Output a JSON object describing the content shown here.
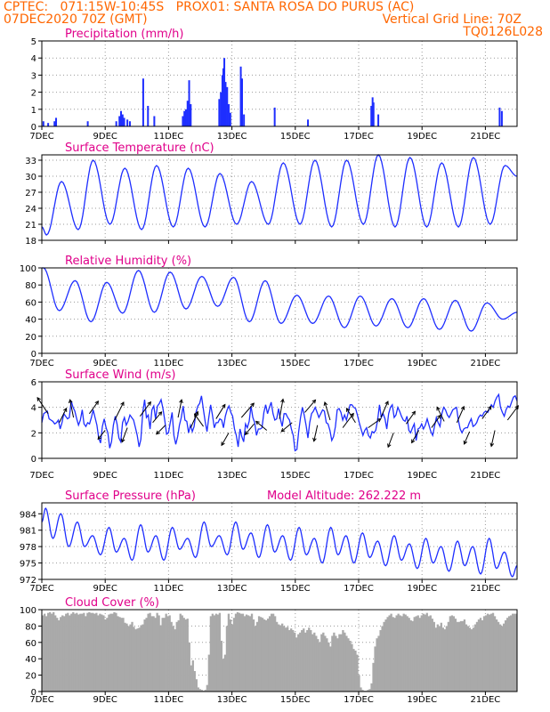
{
  "header": {
    "line1": "CPTEC:   071:15W-10:45S   PROX01: SANTA ROSA DO PURUS (AC)",
    "line2_left": "07DEC2020 70Z (GMT)",
    "line2_right": "Vertical Grid Line: 70Z",
    "line3_right": "TQ0126L028",
    "color": "#ff6600"
  },
  "x_axis": {
    "ticks": [
      "7DEC",
      "9DEC",
      "11DEC",
      "13DEC",
      "15DEC",
      "17DEC",
      "19DEC",
      "21DEC"
    ],
    "tick_days": [
      0,
      2,
      4,
      6,
      8,
      10,
      12,
      14
    ],
    "range_days": [
      0,
      15
    ]
  },
  "chart_data": [
    {
      "type": "bar",
      "title": "Precipitation (mm/h)",
      "ylim": [
        0,
        5
      ],
      "yticks": [
        "0",
        "1",
        "2",
        "3",
        "4",
        "5"
      ],
      "color": "#1e2eff",
      "points": [
        [
          0.05,
          0.3
        ],
        [
          0.2,
          0.2
        ],
        [
          0.4,
          0.3
        ],
        [
          0.45,
          0.5
        ],
        [
          1.45,
          0.3
        ],
        [
          2.35,
          0.3
        ],
        [
          2.45,
          0.6
        ],
        [
          2.5,
          0.9
        ],
        [
          2.55,
          0.7
        ],
        [
          2.6,
          0.5
        ],
        [
          2.7,
          0.4
        ],
        [
          2.78,
          0.3
        ],
        [
          3.2,
          2.8
        ],
        [
          3.35,
          1.2
        ],
        [
          3.55,
          0.6
        ],
        [
          4.45,
          0.6
        ],
        [
          4.5,
          0.9
        ],
        [
          4.55,
          1.0
        ],
        [
          4.6,
          1.5
        ],
        [
          4.65,
          2.7
        ],
        [
          4.7,
          1.3
        ],
        [
          5.6,
          1.6
        ],
        [
          5.65,
          2.0
        ],
        [
          5.7,
          3.0
        ],
        [
          5.73,
          3.4
        ],
        [
          5.76,
          4.0
        ],
        [
          5.8,
          2.6
        ],
        [
          5.85,
          2.3
        ],
        [
          5.9,
          1.3
        ],
        [
          5.95,
          0.8
        ],
        [
          6.28,
          3.5
        ],
        [
          6.32,
          2.8
        ],
        [
          6.38,
          0.7
        ],
        [
          7.35,
          1.1
        ],
        [
          8.4,
          0.4
        ],
        [
          10.4,
          1.2
        ],
        [
          10.44,
          1.7
        ],
        [
          10.47,
          1.4
        ],
        [
          10.62,
          0.7
        ],
        [
          14.45,
          1.1
        ],
        [
          14.52,
          0.9
        ]
      ]
    },
    {
      "type": "line",
      "title": "Surface Temperature (nC)",
      "ylim": [
        18,
        34
      ],
      "yticks": [
        "18",
        "21",
        "24",
        "27",
        "30",
        "33"
      ],
      "color": "#1e2eff",
      "max": [
        29,
        33,
        31.5,
        32,
        31.5,
        30.5,
        29,
        32.5,
        33,
        33,
        34,
        33.5,
        32.5,
        33.5,
        32
      ],
      "min": [
        19,
        20,
        21,
        20,
        20.5,
        20.5,
        21,
        21,
        21,
        20.5,
        21,
        20.5,
        20.5,
        20.5,
        21
      ]
    },
    {
      "type": "line",
      "title": "Relative Humidity (%)",
      "ylim": [
        0,
        100
      ],
      "yticks": [
        "0",
        "20",
        "40",
        "60",
        "80",
        "100"
      ],
      "color": "#1e2eff",
      "max": [
        100,
        85,
        83,
        97,
        95,
        90,
        89,
        85,
        68,
        67,
        67,
        64,
        64,
        62,
        59
      ],
      "min": [
        50,
        37,
        47,
        48,
        52,
        55,
        37,
        35,
        35,
        30,
        32,
        30,
        28,
        26,
        40
      ]
    },
    {
      "type": "line",
      "title": "Surface Wind (m/s)",
      "ylim": [
        0,
        6
      ],
      "yticks": [
        "0",
        "2",
        "4",
        "6"
      ],
      "color": "#1e2eff",
      "series_values": [
        2.8,
        3.5,
        3.6,
        3.7,
        3.1,
        3.0,
        2.9,
        2.7,
        2.8,
        3.0,
        2.3,
        2.8,
        3.5,
        3.3,
        3.1,
        3.2,
        4.5,
        4.0,
        3.7,
        3.1,
        2.6,
        3.0,
        3.8,
        2.7,
        2.5,
        2.8,
        2.7,
        3.2,
        3.8,
        3.2,
        2.6,
        1.6,
        1.2,
        2.5,
        3.1,
        2.4,
        2.0,
        0.8,
        1.3,
        2.6,
        3.3,
        2.7,
        1.6,
        1.3,
        2.8,
        3.2,
        2.6,
        2.9,
        3.4,
        3.2,
        3.0,
        2.4,
        1.8,
        0.9,
        1.5,
        3.6,
        4.6,
        3.2,
        3.4,
        2.3,
        3.8,
        4.1,
        3.1,
        4.1,
        4.3,
        4.6,
        3.9,
        3.0,
        1.9,
        2.0,
        2.8,
        3.6,
        1.8,
        1.1,
        1.7,
        2.6,
        3.2,
        4.1,
        3.0,
        2.9,
        2.0,
        2.6,
        2.1,
        2.5,
        3.6,
        4.1,
        4.3,
        4.9,
        3.9,
        2.9,
        2.1,
        3.2,
        4.2,
        3.4,
        2.4,
        2.8,
        2.8,
        3.1,
        3.0,
        2.4,
        3.3,
        3.8,
        4.1,
        3.6,
        3.3,
        2.3,
        1.8,
        0.9,
        2.3,
        1.7,
        1.3,
        2.7,
        2.4,
        2.9,
        4.1,
        3.2,
        2.8,
        1.8,
        2.3,
        2.3,
        2.4,
        3.6,
        4.2,
        3.5,
        4.0,
        4.4,
        3.5,
        3.0,
        3.1,
        3.9,
        3.1,
        2.5,
        3.5,
        3.5,
        3.2,
        3.0,
        2.3,
        1.8,
        0.6,
        0.7,
        2.1,
        3.2,
        4.0,
        3.4,
        2.6,
        1.6,
        2.8,
        3.5,
        3.7,
        4.0,
        3.6,
        3.2,
        3.5,
        3.8,
        3.7,
        2.8,
        2.7,
        2.2,
        1.4,
        1.7,
        2.5,
        3.8,
        3.9,
        3.6,
        3.0,
        3.4,
        3.0,
        3.6,
        4.2,
        4.2,
        4.0,
        3.9,
        3.4,
        2.8,
        2.3,
        1.8,
        2.2,
        2.4,
        1.8,
        1.6,
        2.1,
        2.0,
        2.2,
        3.0,
        4.2,
        3.2,
        3.5,
        3.1,
        2.3,
        3.5,
        4.0,
        4.2,
        3.2,
        3.4,
        4.0,
        3.7,
        3.3,
        3.0,
        2.9,
        3.3,
        2.2,
        2.0,
        2.4,
        2.7,
        1.4,
        2.3,
        2.4,
        2.7,
        2.3,
        2.6,
        3.1,
        2.6,
        2.1,
        1.8,
        2.5,
        3.2,
        2.8,
        2.5,
        3.5,
        4.0,
        3.8,
        3.4,
        3.2,
        3.5,
        3.8,
        3.9,
        4.0,
        3.0,
        2.3,
        2.0,
        2.3,
        2.4,
        2.4,
        2.8,
        3.1,
        2.5,
        2.6,
        2.8,
        3.2,
        3.4,
        3.3,
        3.6,
        3.7,
        3.6,
        3.9,
        4.2,
        4.0,
        4.5,
        4.8,
        5.0,
        4.0,
        3.6,
        3.3,
        3.8,
        4.1,
        4.0,
        4.4,
        4.8,
        4.9,
        4.5
      ],
      "arrows": [
        [
          0.2,
          3.5,
          -12,
          -18
        ],
        [
          0.55,
          2.8,
          8,
          -16
        ],
        [
          1.0,
          3.2,
          -4,
          -20
        ],
        [
          1.5,
          3.5,
          10,
          -14
        ],
        [
          2.0,
          2.2,
          -8,
          10
        ],
        [
          2.3,
          3.0,
          10,
          -20
        ],
        [
          2.7,
          2.4,
          -6,
          16
        ],
        [
          3.1,
          3.3,
          12,
          -16
        ],
        [
          3.5,
          2.8,
          10,
          -12
        ],
        [
          3.9,
          2.6,
          -10,
          10
        ],
        [
          4.3,
          3.2,
          4,
          -20
        ],
        [
          4.7,
          2.4,
          8,
          -18
        ],
        [
          5.1,
          2.5,
          -10,
          -14
        ],
        [
          5.5,
          3.1,
          10,
          -16
        ],
        [
          5.9,
          2.0,
          -8,
          14
        ],
        [
          6.3,
          3.2,
          14,
          -16
        ],
        [
          6.7,
          2.7,
          -10,
          12
        ],
        [
          7.1,
          2.2,
          -12,
          -10
        ],
        [
          7.5,
          3.1,
          4,
          -22
        ],
        [
          7.9,
          2.8,
          -12,
          10
        ],
        [
          8.3,
          3.6,
          12,
          -14
        ],
        [
          8.7,
          2.6,
          -4,
          18
        ],
        [
          9.1,
          3.0,
          -6,
          -20
        ],
        [
          9.5,
          2.4,
          12,
          -16
        ],
        [
          9.9,
          2.8,
          -10,
          -16
        ],
        [
          10.3,
          2.4,
          14,
          -10
        ],
        [
          10.7,
          3.2,
          8,
          -18
        ],
        [
          11.1,
          2.0,
          -6,
          16
        ],
        [
          11.5,
          2.7,
          10,
          -14
        ],
        [
          11.9,
          2.2,
          -8,
          14
        ],
        [
          12.3,
          2.4,
          10,
          -14
        ],
        [
          12.7,
          2.9,
          -8,
          -16
        ],
        [
          13.1,
          2.8,
          8,
          -18
        ],
        [
          13.5,
          2.1,
          -6,
          14
        ],
        [
          13.9,
          3.1,
          10,
          -14
        ],
        [
          14.3,
          2.2,
          -4,
          18
        ],
        [
          14.7,
          3.0,
          12,
          -16
        ]
      ]
    },
    {
      "type": "line",
      "title": "Surface Pressure (hPa)",
      "annotation": "Model Altitude: 262.222  m",
      "ylim": [
        972,
        986
      ],
      "yticks": [
        "972",
        "975",
        "978",
        "981",
        "984"
      ],
      "color": "#1e2eff",
      "start": 982.5,
      "am_peak": [
        985,
        982.5,
        981.5,
        982,
        981.5,
        982.5,
        982.5,
        982,
        981.5,
        981.5,
        980.5,
        980,
        979.5,
        979,
        979.5
      ],
      "pm_peak": [
        984,
        980,
        979.5,
        980,
        979.5,
        980,
        980.5,
        980,
        979.5,
        980,
        979,
        978.5,
        978,
        978,
        977
      ],
      "trough": [
        978,
        976.5,
        975.5,
        975.5,
        976,
        976.5,
        976,
        975.5,
        975,
        975,
        974.5,
        974,
        973.5,
        973,
        972.5
      ]
    },
    {
      "type": "area",
      "title": "Cloud Cover (%)",
      "ylim": [
        0,
        100
      ],
      "yticks": [
        "0",
        "20",
        "40",
        "60",
        "80",
        "100"
      ],
      "color": "#a9a9a9",
      "series_values": [
        93,
        95,
        92,
        96,
        97,
        95,
        97,
        93,
        90,
        87,
        91,
        93,
        92,
        95,
        96,
        93,
        95,
        97,
        95,
        96,
        94,
        95,
        95,
        96,
        92,
        96,
        97,
        96,
        96,
        95,
        96,
        93,
        95,
        94,
        93,
        88,
        90,
        94,
        95,
        95,
        97,
        96,
        92,
        91,
        90,
        90,
        84,
        83,
        80,
        82,
        85,
        79,
        76,
        77,
        78,
        81,
        82,
        88,
        90,
        95,
        96,
        92,
        92,
        90,
        96,
        93,
        81,
        90,
        90,
        95,
        92,
        93,
        85,
        80,
        76,
        85,
        87,
        95,
        93,
        90,
        88,
        89,
        60,
        32,
        38,
        25,
        15,
        5,
        3,
        2,
        1,
        2,
        8,
        45,
        92,
        95,
        93,
        95,
        94,
        96,
        62,
        40,
        45,
        80,
        95,
        88,
        82,
        90,
        95,
        97,
        96,
        95,
        95,
        92,
        94,
        93,
        92,
        95,
        88,
        80,
        85,
        92,
        91,
        90,
        88,
        87,
        89,
        92,
        95,
        95,
        92,
        85,
        82,
        81,
        83,
        80,
        78,
        79,
        75,
        77,
        75,
        72,
        66,
        70,
        72,
        75,
        77,
        72,
        75,
        78,
        75,
        70,
        72,
        68,
        64,
        60,
        70,
        72,
        68,
        65,
        60,
        55,
        68,
        72,
        68,
        65,
        70,
        70,
        75,
        72,
        68,
        65,
        62,
        58,
        52,
        50,
        45,
        20,
        5,
        2,
        1,
        1,
        2,
        3,
        10,
        35,
        55,
        65,
        68,
        75,
        80,
        85,
        88,
        91,
        93,
        95,
        91,
        90,
        93,
        95,
        93,
        92,
        95,
        94,
        92,
        90,
        87,
        86,
        91,
        92,
        93,
        90,
        93,
        95,
        94,
        96,
        92,
        93,
        89,
        85,
        78,
        82,
        80,
        84,
        78,
        76,
        80,
        85,
        92,
        93,
        92,
        89,
        85,
        85,
        86,
        86,
        88,
        82,
        80,
        78,
        76,
        78,
        82,
        85,
        88,
        90,
        87,
        92,
        93,
        95,
        94,
        95,
        96,
        92,
        88,
        85,
        82,
        80,
        83,
        87,
        90,
        92,
        93,
        95,
        95,
        95
      ]
    }
  ]
}
